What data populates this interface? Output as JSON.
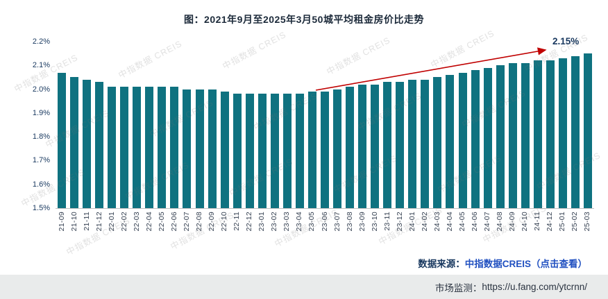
{
  "chart_data": {
    "type": "bar",
    "title": "图：2021年9月至2025年3月50城平均租金房价比走势",
    "categories": [
      "21-09",
      "21-10",
      "21-11",
      "21-12",
      "22-01",
      "22-02",
      "22-03",
      "22-04",
      "22-05",
      "22-06",
      "22-07",
      "22-08",
      "22-09",
      "22-10",
      "22-11",
      "22-12",
      "23-01",
      "23-02",
      "23-03",
      "23-04",
      "23-05",
      "23-06",
      "23-07",
      "23-08",
      "23-09",
      "23-10",
      "23-11",
      "23-12",
      "24-01",
      "24-02",
      "24-03",
      "24-04",
      "24-05",
      "24-06",
      "24-07",
      "24-08",
      "24-09",
      "24-10",
      "24-11",
      "24-12",
      "25-01",
      "25-02",
      "25-03"
    ],
    "values": [
      2.07,
      2.05,
      2.04,
      2.03,
      2.01,
      2.01,
      2.01,
      2.01,
      2.01,
      2.01,
      2.0,
      2.0,
      2.0,
      1.99,
      1.98,
      1.98,
      1.98,
      1.98,
      1.98,
      1.98,
      1.99,
      1.99,
      2.0,
      2.01,
      2.02,
      2.02,
      2.03,
      2.03,
      2.04,
      2.04,
      2.05,
      2.06,
      2.07,
      2.08,
      2.09,
      2.1,
      2.11,
      2.11,
      2.12,
      2.12,
      2.13,
      2.14,
      2.15
    ],
    "unit": "%",
    "ylim": [
      1.5,
      2.2
    ],
    "yticks": [
      "2.2%",
      "2.1%",
      "2.0%",
      "1.9%",
      "1.8%",
      "1.7%",
      "1.6%",
      "1.5%"
    ],
    "grid": "off",
    "legend": "none",
    "bar_color": "#0f7280",
    "arrow_color": "#c00000",
    "annotation": {
      "label": "2.15%",
      "color": "#17375e"
    }
  },
  "watermark": {
    "text": "中指数据 CREIS"
  },
  "footer": {
    "source_label": "数据来源：",
    "source_link": "中指数据CREIS（点击查看）",
    "link_color": "#2050c0",
    "monitor_label": "市场监测：",
    "monitor_url": "https://u.fang.com/ytcrnn/"
  }
}
